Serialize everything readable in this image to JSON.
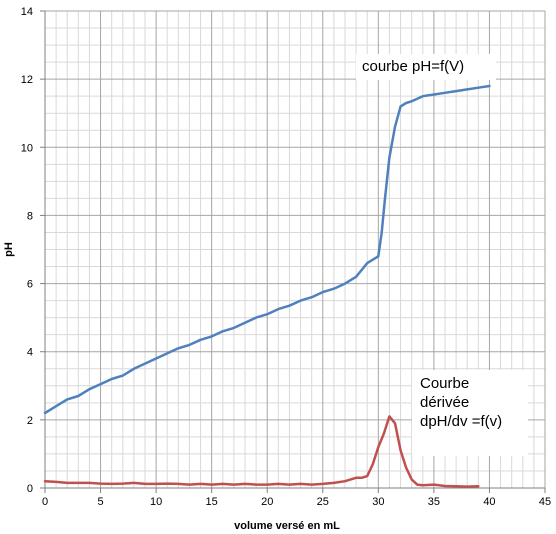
{
  "chart_data": {
    "type": "line",
    "title": "",
    "xlabel": "volume versé en mL",
    "ylabel": "pH",
    "xlim": [
      0,
      45
    ],
    "ylim": [
      0,
      14
    ],
    "x_ticks": [
      0,
      5,
      10,
      15,
      20,
      25,
      30,
      35,
      40,
      45
    ],
    "y_ticks": [
      0,
      2,
      4,
      6,
      8,
      10,
      12,
      14
    ],
    "grid": true,
    "legend": "none",
    "annotations": [
      {
        "id": "ph",
        "text": "courbe pH=f(V)"
      },
      {
        "id": "deriv",
        "lines": [
          "Courbe",
          "dérivée",
          "dpH/dv =f(v)"
        ]
      }
    ],
    "series": [
      {
        "color": "#4f81bd",
        "x": [
          0,
          1,
          2,
          3,
          4,
          5,
          6,
          7,
          8,
          9,
          10,
          11,
          12,
          13,
          14,
          15,
          16,
          17,
          18,
          19,
          20,
          21,
          22,
          23,
          24,
          25,
          26,
          27,
          28,
          29,
          29.5,
          30,
          30.3,
          30.6,
          31,
          31.5,
          32,
          32.5,
          33,
          34,
          35,
          36,
          37,
          38,
          39,
          40
        ],
        "y": [
          2.2,
          2.4,
          2.6,
          2.7,
          2.9,
          3.05,
          3.2,
          3.3,
          3.5,
          3.65,
          3.8,
          3.95,
          4.1,
          4.2,
          4.35,
          4.45,
          4.6,
          4.7,
          4.85,
          5.0,
          5.1,
          5.25,
          5.35,
          5.5,
          5.6,
          5.75,
          5.85,
          6.0,
          6.2,
          6.6,
          6.7,
          6.8,
          7.5,
          8.5,
          9.7,
          10.6,
          11.2,
          11.3,
          11.35,
          11.5,
          11.55,
          11.6,
          11.65,
          11.7,
          11.75,
          11.8
        ]
      },
      {
        "color": "#c0504d",
        "x": [
          0,
          1,
          2,
          3,
          4,
          5,
          6,
          7,
          8,
          9,
          10,
          11,
          12,
          13,
          14,
          15,
          16,
          17,
          18,
          19,
          20,
          21,
          22,
          23,
          24,
          25,
          26,
          27,
          28,
          28.5,
          29,
          29.5,
          30,
          30.5,
          31,
          31.5,
          32,
          32.5,
          33,
          33.5,
          34,
          35,
          36,
          37,
          38,
          39
        ],
        "y": [
          0.2,
          0.18,
          0.15,
          0.15,
          0.15,
          0.13,
          0.12,
          0.13,
          0.15,
          0.12,
          0.12,
          0.13,
          0.12,
          0.1,
          0.12,
          0.1,
          0.12,
          0.1,
          0.12,
          0.1,
          0.1,
          0.12,
          0.1,
          0.12,
          0.1,
          0.12,
          0.15,
          0.2,
          0.3,
          0.3,
          0.35,
          0.7,
          1.2,
          1.6,
          2.1,
          1.9,
          1.1,
          0.6,
          0.25,
          0.1,
          0.08,
          0.1,
          0.06,
          0.05,
          0.04,
          0.05
        ]
      }
    ]
  }
}
